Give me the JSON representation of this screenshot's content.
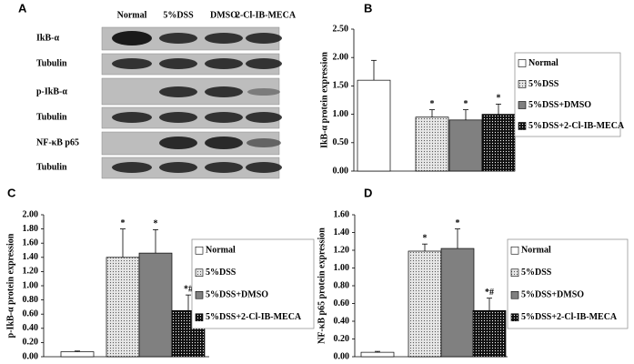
{
  "blot": {
    "panel": "A",
    "columns": [
      "Normal",
      "5%DSS",
      "DMSO",
      "2-Cl-IB-MECA"
    ],
    "rows": [
      "IkB-α",
      "Tubulin",
      "p-IkB-α",
      "Tubulin",
      "NF-κB p65",
      "Tubulin"
    ]
  },
  "chart_data": [
    {
      "type": "bar",
      "panel": "B",
      "y_label": "IkB-α protein expression",
      "ylim": [
        0,
        2.5
      ],
      "yticks": [
        {
          "value": 0,
          "label": "0.00"
        },
        {
          "value": 0.5,
          "label": "0.50"
        },
        {
          "value": 1,
          "label": "1.00"
        },
        {
          "value": 1.5,
          "label": "1.50"
        },
        {
          "value": 2,
          "label": "2.00"
        },
        {
          "value": 2.5,
          "label": "2.50"
        }
      ],
      "legend": "right",
      "series": [
        {
          "name": "Normal",
          "color": "#ffffff",
          "values": [
            1.6
          ],
          "errors": [
            0.35
          ]
        },
        {
          "name": "5%DSS",
          "color": "#e6e6e6",
          "fill_style": "dotted",
          "values": [
            0.95
          ],
          "errors": [
            0.13
          ],
          "annotation": "*"
        },
        {
          "name": "5%DSS+DMSO",
          "color": "#808080",
          "values": [
            0.9
          ],
          "errors": [
            0.18
          ],
          "annotation": "*"
        },
        {
          "name": "5%DSS+2-Cl-IB-MECA",
          "color": "#111111",
          "fill_style": "dotted",
          "values": [
            1.0
          ],
          "errors": [
            0.18
          ],
          "annotation": "*"
        }
      ]
    },
    {
      "type": "bar",
      "panel": "C",
      "y_label": "p-IkB-α protein expression",
      "ylim": [
        0,
        2
      ],
      "yticks": [
        {
          "value": 0,
          "label": "0.00"
        },
        {
          "value": 0.2,
          "label": "0.20"
        },
        {
          "value": 0.4,
          "label": "0.40"
        },
        {
          "value": 0.6,
          "label": "0.60"
        },
        {
          "value": 0.8,
          "label": "0.80"
        },
        {
          "value": 1,
          "label": "1.00"
        },
        {
          "value": 1.2,
          "label": "1.20"
        },
        {
          "value": 1.4,
          "label": "1.40"
        },
        {
          "value": 1.6,
          "label": "1.60"
        },
        {
          "value": 1.8,
          "label": "1.80"
        },
        {
          "value": 2,
          "label": "2.00"
        }
      ],
      "legend": "right",
      "series": [
        {
          "name": "Normal",
          "color": "#ffffff",
          "values": [
            0.07
          ],
          "errors": [
            0.01
          ]
        },
        {
          "name": "5%DSS",
          "color": "#e6e6e6",
          "fill_style": "dotted",
          "values": [
            1.4
          ],
          "errors": [
            0.4
          ],
          "annotation": "*"
        },
        {
          "name": "5%DSS+DMSO",
          "color": "#808080",
          "values": [
            1.46
          ],
          "errors": [
            0.33
          ],
          "annotation": "*"
        },
        {
          "name": "5%DSS+2-Cl-IB-MECA",
          "color": "#111111",
          "fill_style": "dotted",
          "values": [
            0.65
          ],
          "errors": [
            0.22
          ],
          "annotation": "*#"
        }
      ]
    },
    {
      "type": "bar",
      "panel": "D",
      "y_label": "NF-κB p65 protein expression",
      "ylim": [
        0,
        1.6
      ],
      "yticks": [
        {
          "value": 0,
          "label": "0.00"
        },
        {
          "value": 0.2,
          "label": "0.20"
        },
        {
          "value": 0.4,
          "label": "0.40"
        },
        {
          "value": 0.6,
          "label": "0.60"
        },
        {
          "value": 0.8,
          "label": "0.80"
        },
        {
          "value": 1,
          "label": "1.00"
        },
        {
          "value": 1.2,
          "label": "1.20"
        },
        {
          "value": 1.4,
          "label": "1.40"
        },
        {
          "value": 1.6,
          "label": "1.60"
        }
      ],
      "legend": "right",
      "series": [
        {
          "name": "Normal",
          "color": "#ffffff",
          "values": [
            0.05
          ],
          "errors": [
            0.01
          ]
        },
        {
          "name": "5%DSS",
          "color": "#e6e6e6",
          "fill_style": "dotted",
          "values": [
            1.19
          ],
          "errors": [
            0.08
          ],
          "annotation": "*"
        },
        {
          "name": "5%DSS+DMSO",
          "color": "#808080",
          "values": [
            1.22
          ],
          "errors": [
            0.22
          ],
          "annotation": "*"
        },
        {
          "name": "5%DSS+2-Cl-IB-MECA",
          "color": "#111111",
          "fill_style": "dotted",
          "values": [
            0.52
          ],
          "errors": [
            0.14
          ],
          "annotation": "*#"
        }
      ]
    }
  ]
}
